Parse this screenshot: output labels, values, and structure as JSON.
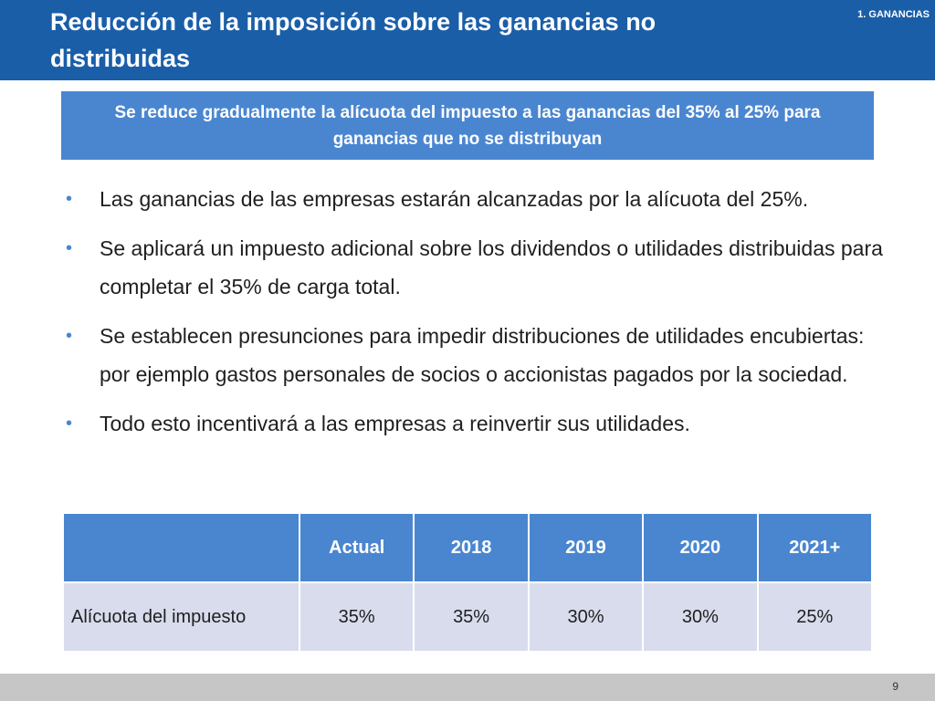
{
  "header": {
    "title": "Reducción de la imposición sobre las ganancias no distribuidas",
    "section": "1. GANANCIAS"
  },
  "callout": {
    "text": "Se reduce gradualmente la alícuota del impuesto a las ganancias del 35% al 25% para ganancias que no se distribuyan"
  },
  "bullets": [
    "Las ganancias de las empresas estarán alcanzadas por la alícuota del 25%.",
    "Se aplicará un impuesto adicional sobre los dividendos o utilidades distribuidas para completar el 35% de carga total.",
    "Se establecen presunciones para impedir distribuciones de utilidades encubiertas: por ejemplo gastos personales de socios o accionistas pagados por la sociedad.",
    "Todo esto incentivará a las empresas a reinvertir sus utilidades."
  ],
  "bullet_symbol": "•",
  "table": {
    "headers": [
      "",
      "Actual",
      "2018",
      "2019",
      "2020",
      "2021+"
    ],
    "row": [
      "Alícuota del impuesto",
      "35%",
      "35%",
      "30%",
      "30%",
      "25%"
    ]
  },
  "footer": {
    "page_number": "9"
  },
  "colors": {
    "header_bg": "#1a5ea8",
    "accent": "#4a86d0",
    "table_row_bg": "#d8dced",
    "footer_bg": "#c6c6c6"
  }
}
